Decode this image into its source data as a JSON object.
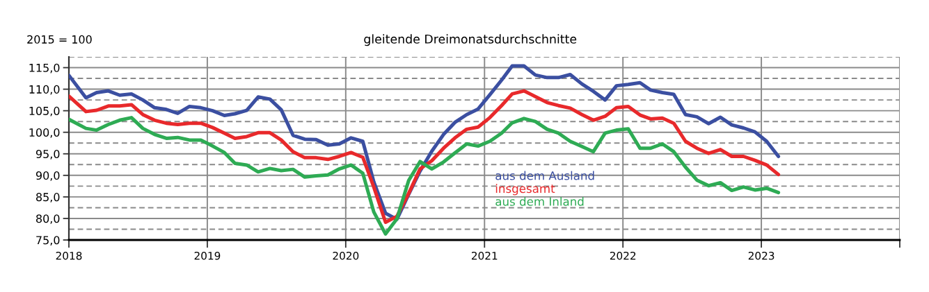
{
  "chart_data": {
    "type": "line",
    "title": "gleitende Dreimonatsdurchschnitte",
    "ylabel": "2015 = 100",
    "x": [
      "2018-01-01",
      "2018-02-15",
      "2018-03-15",
      "2018-04-15",
      "2018-05-15",
      "2018-06-15",
      "2018-07-15",
      "2018-08-15",
      "2018-09-15",
      "2018-10-15",
      "2018-11-15",
      "2018-12-15",
      "2019-01-15",
      "2019-02-15",
      "2019-03-15",
      "2019-04-15",
      "2019-05-15",
      "2019-06-15",
      "2019-07-15",
      "2019-08-15",
      "2019-09-15",
      "2019-10-15",
      "2019-11-15",
      "2019-12-15",
      "2020-01-15",
      "2020-02-15",
      "2020-03-15",
      "2020-04-15",
      "2020-05-15",
      "2020-06-15",
      "2020-07-15",
      "2020-08-15",
      "2020-09-15",
      "2020-10-15",
      "2020-11-15",
      "2020-12-15",
      "2021-01-15",
      "2021-02-15",
      "2021-03-15",
      "2021-04-15",
      "2021-05-15",
      "2021-06-15",
      "2021-07-15",
      "2021-08-15",
      "2021-09-15",
      "2021-10-15",
      "2021-11-15",
      "2021-12-15",
      "2022-01-15",
      "2022-02-15",
      "2022-03-15",
      "2022-04-15",
      "2022-05-15",
      "2022-06-15",
      "2022-07-15",
      "2022-08-15",
      "2022-09-15",
      "2022-10-15",
      "2022-11-15",
      "2022-12-15",
      "2023-01-15",
      "2023-02-15"
    ],
    "series": [
      {
        "name": "aus dem Ausland",
        "color": "#3b4fa1",
        "values": [
          113.2,
          108.0,
          109.2,
          109.6,
          108.6,
          108.9,
          107.5,
          105.7,
          105.3,
          104.4,
          106.0,
          105.7,
          105.0,
          103.9,
          104.3,
          105.1,
          108.2,
          107.7,
          105.2,
          99.3,
          98.4,
          98.3,
          97.0,
          97.3,
          98.7,
          97.9,
          88.5,
          81.2,
          79.8,
          85.6,
          91.0,
          95.6,
          99.5,
          102.3,
          104.1,
          105.4,
          108.7,
          112.1,
          115.4,
          115.4,
          113.3,
          112.7,
          112.7,
          113.4,
          111.2,
          109.5,
          107.5,
          110.8,
          111.1,
          111.5,
          109.8,
          109.2,
          108.8,
          104.1,
          103.6,
          102.0,
          103.5,
          101.7,
          101.0,
          100.1,
          97.9,
          94.4
        ]
      },
      {
        "name": "insgesamt",
        "color": "#e8292b",
        "values": [
          108.4,
          104.8,
          105.1,
          106.1,
          106.1,
          106.4,
          104.1,
          102.8,
          102.1,
          101.8,
          102.1,
          102.1,
          101.1,
          99.8,
          98.6,
          99.0,
          99.9,
          99.9,
          98.2,
          95.5,
          94.1,
          94.1,
          93.7,
          94.4,
          95.3,
          94.2,
          87.3,
          79.1,
          80.5,
          85.8,
          91.5,
          93.4,
          96.3,
          98.7,
          100.7,
          101.2,
          103.4,
          106.2,
          108.9,
          109.6,
          108.3,
          106.9,
          106.2,
          105.6,
          104.1,
          102.8,
          103.7,
          105.7,
          106.0,
          104.0,
          103.1,
          103.3,
          102.1,
          97.9,
          96.3,
          95.1,
          96.0,
          94.4,
          94.4,
          93.5,
          92.4,
          90.2
        ]
      },
      {
        "name": "aus dem Inland",
        "color": "#2eab54",
        "values": [
          103.0,
          100.9,
          100.5,
          101.8,
          102.8,
          103.4,
          100.9,
          99.5,
          98.6,
          98.8,
          98.2,
          98.2,
          96.8,
          95.3,
          92.8,
          92.4,
          90.8,
          91.6,
          91.1,
          91.4,
          89.6,
          89.9,
          90.1,
          91.5,
          92.4,
          90.5,
          81.5,
          76.4,
          79.9,
          88.8,
          93.2,
          91.5,
          93.1,
          95.2,
          97.3,
          96.8,
          97.9,
          99.8,
          102.2,
          103.2,
          102.5,
          100.7,
          99.8,
          97.9,
          96.7,
          95.5,
          99.8,
          100.5,
          100.8,
          96.3,
          96.3,
          97.3,
          95.5,
          91.9,
          88.9,
          87.6,
          88.3,
          86.5,
          87.3,
          86.6,
          87.0,
          86.0
        ]
      }
    ],
    "xlim": [
      "2018",
      "2024"
    ],
    "xticks": [
      "2018",
      "2019",
      "2020",
      "2021",
      "2022",
      "2023",
      {
        "value": "2024",
        "label": null
      }
    ],
    "ylim": [
      75,
      117.5
    ],
    "yticks": [
      {
        "value": 75,
        "label": "75,0"
      },
      {
        "value": 77.5,
        "label": null
      },
      {
        "value": 80,
        "label": "80,0"
      },
      {
        "value": 82.5,
        "label": null
      },
      {
        "value": 85,
        "label": "85,0"
      },
      {
        "value": 87.5,
        "label": null
      },
      {
        "value": 90,
        "label": "90,0"
      },
      {
        "value": 92.5,
        "label": null
      },
      {
        "value": 95,
        "label": "95,0"
      },
      {
        "value": 97.5,
        "label": null
      },
      {
        "value": 100,
        "label": "100,0"
      },
      {
        "value": 102.5,
        "label": null
      },
      {
        "value": 105,
        "label": "105,0"
      },
      {
        "value": 107.5,
        "label": null
      },
      {
        "value": 110,
        "label": "110,0"
      },
      {
        "value": 112.5,
        "label": null
      },
      {
        "value": 115,
        "label": "115,0"
      },
      {
        "value": 117.5,
        "label": null
      }
    ],
    "grid": true,
    "legend": "bottom",
    "marker": "none",
    "line_style": "solid"
  }
}
